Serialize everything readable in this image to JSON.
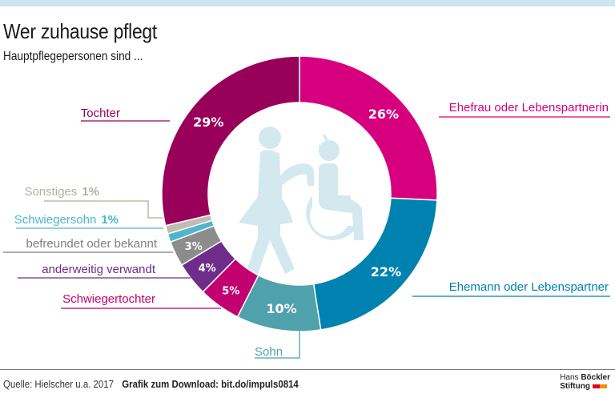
{
  "header": {
    "title": "Wer zuhause pflegt",
    "subtitle": "Hauptpflegepersonen sind ..."
  },
  "footer": {
    "source": "Quelle: Hielscher u.a. 2017",
    "download": "Grafik zum Download: bit.do/impuls0814",
    "logo_line1_a": "Hans ",
    "logo_line1_b": "Böckler",
    "logo_line2": "Stiftung",
    "logo_colors": [
      "#e2001a",
      "#f39200"
    ]
  },
  "colors": {
    "topbar": "#cbe6f0",
    "icon": "#d4e8ef"
  },
  "chart_data": {
    "type": "pie",
    "variant": "donut",
    "title": "Wer zuhause pflegt",
    "subtitle": "Hauptpflegepersonen sind ...",
    "unit": "%",
    "start": "top, clockwise",
    "slices": [
      {
        "label": "Ehefrau oder Lebenspartnerin",
        "value": 26,
        "display": "26%",
        "color": "#d6007f",
        "label_color": "#d6007f",
        "label_side": "right",
        "show_pct_inside": true
      },
      {
        "label": "Ehemann oder Lebenspartner",
        "value": 22,
        "display": "22%",
        "color": "#0082b0",
        "label_color": "#0082b0",
        "label_side": "right",
        "show_pct_inside": true
      },
      {
        "label": "Sohn",
        "value": 10,
        "display": "10%",
        "color": "#4fa1ac",
        "label_color": "#4fa1ac",
        "label_side": "bottom",
        "show_pct_inside": true
      },
      {
        "label": "Schwiegertochter",
        "value": 5,
        "display": "5%",
        "color": "#c3006f",
        "label_color": "#c3006f",
        "label_side": "left",
        "show_pct_inside": true
      },
      {
        "label": "anderweitig verwandt",
        "value": 4,
        "display": "4%",
        "color": "#6e2d8a",
        "label_color": "#6e2d8a",
        "label_side": "left",
        "show_pct_inside": true
      },
      {
        "label": "befreundet oder bekannt",
        "value": 3,
        "display": "3%",
        "color": "#8c8c8c",
        "label_color": "#7f7f7f",
        "label_side": "left",
        "show_pct_inside": true
      },
      {
        "label": "Schwiegersohn",
        "value": 1,
        "display": "1%",
        "color": "#4cb6cc",
        "label_color": "#4cb6cc",
        "label_side": "left",
        "show_pct_inside": false
      },
      {
        "label": "Sonstiges",
        "value": 1,
        "display": "1%",
        "color": "#c0bcaf",
        "label_color": "#b3ae9f",
        "label_side": "left",
        "show_pct_inside": false
      },
      {
        "label": "Tochter",
        "value": 29,
        "display": "29%",
        "color": "#98005a",
        "label_color": "#98005a",
        "label_side": "left",
        "show_pct_inside": true
      }
    ]
  }
}
